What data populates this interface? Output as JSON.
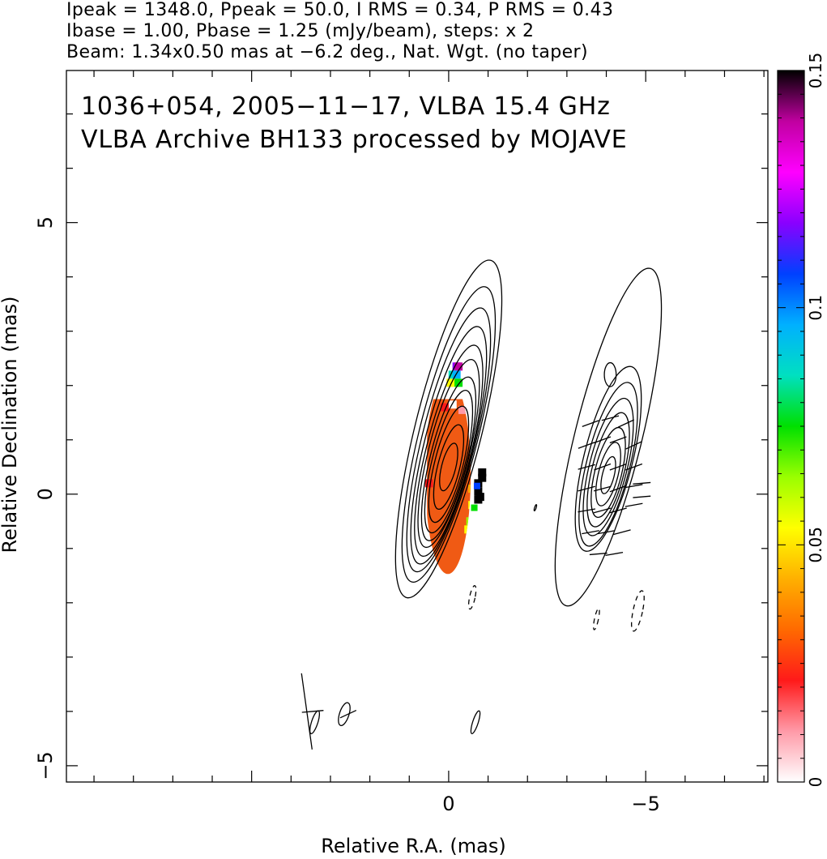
{
  "header": {
    "line1": "Ipeak = 1348.0, Ppeak = 50.0, I RMS = 0.34, P RMS = 0.43",
    "line2": "Ibase = 1.00, Pbase = 1.25 (mJy/beam), steps: x 2",
    "line3": "Beam: 1.34x0.50 mas at −6.2 deg., Nat. Wgt. (no taper)"
  },
  "panel": {
    "line1": "1036+054, 2005−11−17, VLBA 15.4 GHz",
    "line2": "VLBA Archive BH133 processed by MOJAVE"
  },
  "colors": {
    "frame": "#000000",
    "background": "#ffffff",
    "polarization_fill": "#f05a14",
    "colorbar_stops": [
      "#ffffff",
      "#ff9aa8",
      "#ff1a1a",
      "#ff6a00",
      "#ffb000",
      "#ffff00",
      "#9aff00",
      "#00e000",
      "#00e0c0",
      "#00b0ff",
      "#0040ff",
      "#8a00ff",
      "#ff00ff",
      "#c000a0",
      "#000000"
    ]
  },
  "chart_data": {
    "type": "heatmap",
    "title": "",
    "xlabel": "Relative R.A. (mas)",
    "ylabel": "Relative Declination (mas)",
    "xlim": [
      9.7,
      -8.1
    ],
    "ylim": [
      -5.3,
      7.8
    ],
    "x_ticks": [
      0,
      -5
    ],
    "x_tick_labels": [
      "0",
      "−5"
    ],
    "y_ticks": [
      5,
      0,
      -5
    ],
    "y_tick_labels": [
      "5",
      "0",
      "−5"
    ],
    "colorbar": {
      "min": 0,
      "max": 0.15,
      "ticks": [
        0,
        0.05,
        0.1,
        0.15
      ],
      "tick_labels": [
        "0",
        "0.05",
        "0.1",
        "0.15"
      ]
    },
    "left_map": {
      "center": [
        0.0,
        0.3
      ],
      "contour_levels_mJy": [
        1,
        2,
        4,
        8,
        16,
        32,
        64,
        128,
        256,
        512,
        1024
      ],
      "contours": [
        {
          "dx": 0.0,
          "dy": 0.9,
          "rx": 0.85,
          "ry": 3.2
        },
        {
          "dx": 0.0,
          "dy": 0.8,
          "rx": 0.75,
          "ry": 2.8
        },
        {
          "dx": 0.0,
          "dy": 0.7,
          "rx": 0.68,
          "ry": 2.5
        },
        {
          "dx": 0.0,
          "dy": 0.6,
          "rx": 0.62,
          "ry": 2.25
        },
        {
          "dx": 0.0,
          "dy": 0.5,
          "rx": 0.57,
          "ry": 2.0
        },
        {
          "dx": 0.0,
          "dy": 0.45,
          "rx": 0.52,
          "ry": 1.78
        },
        {
          "dx": 0.0,
          "dy": 0.35,
          "rx": 0.47,
          "ry": 1.55
        },
        {
          "dx": 0.0,
          "dy": 0.3,
          "rx": 0.42,
          "ry": 1.35
        },
        {
          "dx": 0.0,
          "dy": 0.25,
          "rx": 0.36,
          "ry": 1.1
        },
        {
          "dx": 0.0,
          "dy": 0.2,
          "rx": 0.28,
          "ry": 0.8
        },
        {
          "dx": 0.0,
          "dy": 0.2,
          "rx": 0.18,
          "ry": 0.45
        }
      ]
    },
    "right_map": {
      "center": [
        -4.05,
        0.15
      ],
      "contours": [
        {
          "dx": 0.0,
          "dy": 0.9,
          "rx": 0.85,
          "ry": 3.2
        },
        {
          "dx": 0.0,
          "dy": 0.5,
          "rx": 0.62,
          "ry": 1.75
        },
        {
          "dx": 0.0,
          "dy": 0.4,
          "rx": 0.55,
          "ry": 1.55
        },
        {
          "dx": 0.0,
          "dy": 0.35,
          "rx": 0.48,
          "ry": 1.3
        },
        {
          "dx": 0.0,
          "dy": 0.3,
          "rx": 0.41,
          "ry": 1.08
        },
        {
          "dx": 0.0,
          "dy": 0.25,
          "rx": 0.34,
          "ry": 0.85
        },
        {
          "dx": 0.0,
          "dy": 0.22,
          "rx": 0.25,
          "ry": 0.6
        },
        {
          "dx": 0.0,
          "dy": 0.2,
          "rx": 0.15,
          "ry": 0.35
        }
      ],
      "evpa_vectors": [
        {
          "x": -3.6,
          "y": 1.3,
          "angle": 20
        },
        {
          "x": -4.1,
          "y": 1.4,
          "angle": 15
        },
        {
          "x": -4.5,
          "y": 1.3,
          "angle": 25
        },
        {
          "x": -3.5,
          "y": 0.9,
          "angle": 20
        },
        {
          "x": -3.9,
          "y": 1.0,
          "angle": 20
        },
        {
          "x": -4.3,
          "y": 1.0,
          "angle": 20
        },
        {
          "x": -4.7,
          "y": 0.9,
          "angle": 25
        },
        {
          "x": -3.5,
          "y": 0.5,
          "angle": 15
        },
        {
          "x": -3.9,
          "y": 0.5,
          "angle": 20
        },
        {
          "x": -4.3,
          "y": 0.5,
          "angle": 20
        },
        {
          "x": -4.7,
          "y": 0.5,
          "angle": 20
        },
        {
          "x": -3.5,
          "y": 0.1,
          "angle": 15
        },
        {
          "x": -3.9,
          "y": 0.1,
          "angle": 15
        },
        {
          "x": -4.3,
          "y": 0.1,
          "angle": 20
        },
        {
          "x": -4.7,
          "y": 0.15,
          "angle": 10
        },
        {
          "x": -3.5,
          "y": -0.3,
          "angle": 10
        },
        {
          "x": -3.9,
          "y": -0.3,
          "angle": 15
        },
        {
          "x": -4.3,
          "y": -0.3,
          "angle": 15
        },
        {
          "x": -4.7,
          "y": -0.2,
          "angle": 10
        },
        {
          "x": -3.6,
          "y": -0.7,
          "angle": 10
        },
        {
          "x": -4.0,
          "y": -0.7,
          "angle": 10
        },
        {
          "x": -4.4,
          "y": -0.7,
          "angle": 15
        },
        {
          "x": -3.8,
          "y": -1.1,
          "angle": 5
        },
        {
          "x": -4.2,
          "y": -1.1,
          "angle": 10
        },
        {
          "x": -4.9,
          "y": 0.2,
          "angle": 5
        },
        {
          "x": -4.9,
          "y": -0.05,
          "angle": 5
        }
      ],
      "small_contour": {
        "x": -4.1,
        "y": 2.2,
        "rx": 0.15,
        "ry": 0.22
      }
    },
    "negative_contours": [
      {
        "x": -0.6,
        "y": -1.9,
        "rx": 0.07,
        "ry": 0.22
      },
      {
        "x": -3.75,
        "y": -2.3,
        "rx": 0.05,
        "ry": 0.2
      },
      {
        "x": -4.8,
        "y": -2.15,
        "rx": 0.12,
        "ry": 0.38
      }
    ],
    "isolated_contours": [
      {
        "x": 3.4,
        "y": -4.2,
        "rx": 0.08,
        "ry": 0.22
      },
      {
        "x": 2.65,
        "y": -4.05,
        "rx": 0.12,
        "ry": 0.22
      },
      {
        "x": -0.68,
        "y": -4.2,
        "rx": 0.07,
        "ry": 0.22
      },
      {
        "x": -2.2,
        "y": -0.25,
        "rx": 0.02,
        "ry": 0.06
      }
    ],
    "isolated_vectors": [
      {
        "x": 3.6,
        "y": -4.0,
        "length": 1.4,
        "angle": -8
      },
      {
        "x": 3.45,
        "y": -4.0,
        "length": 0.55,
        "angle": 85
      },
      {
        "x": 2.55,
        "y": -4.05,
        "length": 0.45,
        "angle": 65
      }
    ],
    "polarization_region": {
      "x_range": [
        0.55,
        -0.75
      ],
      "y_range": [
        -1.9,
        1.75
      ],
      "peak_value": 0.036
    }
  }
}
